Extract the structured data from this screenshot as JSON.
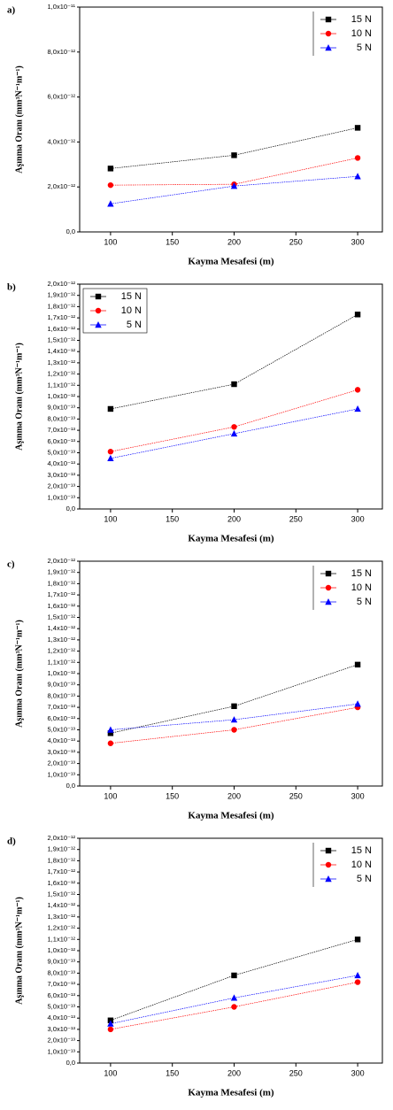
{
  "chart_data": [
    {
      "type": "line",
      "panel": "a)",
      "x_label": "Kayma Mesafesi (m)",
      "y_label": "Aşınma Oranı (mm³N⁻¹m⁻¹)",
      "x": [
        100,
        200,
        300
      ],
      "xlim": [
        75,
        320
      ],
      "xticks": [
        100,
        150,
        200,
        250,
        300
      ],
      "ylim": [
        0,
        1e-11
      ],
      "yticks": [
        {
          "value": 0,
          "label": "0,0"
        },
        {
          "value": 2e-12,
          "label": "2,0x10⁻¹²"
        },
        {
          "value": 4e-12,
          "label": "4,0x10⁻¹²"
        },
        {
          "value": 6e-12,
          "label": "6,0x10⁻¹²"
        },
        {
          "value": 8e-12,
          "label": "8,0x10⁻¹²"
        },
        {
          "value": 1e-11,
          "label": "1,0x10⁻¹¹"
        }
      ],
      "legend": "top-right",
      "series": [
        {
          "name": "15 N",
          "color": "#000000",
          "marker": "square",
          "values": [
            2.82e-12,
            3.41e-12,
            4.63e-12
          ]
        },
        {
          "name": "10 N",
          "color": "#ff0000",
          "marker": "circle",
          "values": [
            2.08e-12,
            2.12e-12,
            3.29e-12
          ]
        },
        {
          "name": "5 N",
          "color": "#0000ff",
          "marker": "triangle",
          "values": [
            1.25e-12,
            2.04e-12,
            2.47e-12
          ]
        }
      ]
    },
    {
      "type": "line",
      "panel": "b)",
      "x_label": "Kayma Mesafesi (m)",
      "y_label": "Aşınma Oranı (mm³N⁻¹m⁻¹)",
      "x": [
        100,
        200,
        300
      ],
      "xlim": [
        75,
        320
      ],
      "xticks": [
        100,
        150,
        200,
        250,
        300
      ],
      "ylim": [
        0,
        2e-12
      ],
      "yticks": [
        {
          "value": 0,
          "label": "0,0"
        },
        {
          "value": 1e-13,
          "label": "1,0x10⁻¹³"
        },
        {
          "value": 2e-13,
          "label": "2,0x10⁻¹³"
        },
        {
          "value": 3e-13,
          "label": "3,0x10⁻¹³"
        },
        {
          "value": 4e-13,
          "label": "4,0x10⁻¹³"
        },
        {
          "value": 5e-13,
          "label": "5,0x10⁻¹³"
        },
        {
          "value": 6e-13,
          "label": "6,0x10⁻¹³"
        },
        {
          "value": 7e-13,
          "label": "7,0x10⁻¹³"
        },
        {
          "value": 8e-13,
          "label": "8,0x10⁻¹³"
        },
        {
          "value": 9e-13,
          "label": "9,0x10⁻¹³"
        },
        {
          "value": 1e-12,
          "label": "1,0x10⁻¹²"
        },
        {
          "value": 1.1e-12,
          "label": "1,1x10⁻¹²"
        },
        {
          "value": 1.2e-12,
          "label": "1,2x10⁻¹²"
        },
        {
          "value": 1.3e-12,
          "label": "1,3x10⁻¹²"
        },
        {
          "value": 1.4e-12,
          "label": "1,4x10⁻¹²"
        },
        {
          "value": 1.5e-12,
          "label": "1,5x10⁻¹²"
        },
        {
          "value": 1.6e-12,
          "label": "1,6x10⁻¹²"
        },
        {
          "value": 1.7e-12,
          "label": "1,7x10⁻¹²"
        },
        {
          "value": 1.8e-12,
          "label": "1,8x10⁻¹²"
        },
        {
          "value": 1.9e-12,
          "label": "1,9x10⁻¹²"
        },
        {
          "value": 2e-12,
          "label": "2,0x10⁻¹²"
        }
      ],
      "legend": "top-left",
      "series": [
        {
          "name": "15 N",
          "color": "#000000",
          "marker": "square",
          "values": [
            8.9e-13,
            1.11e-12,
            1.73e-12
          ]
        },
        {
          "name": "10 N",
          "color": "#ff0000",
          "marker": "circle",
          "values": [
            5.1e-13,
            7.3e-13,
            1.06e-12
          ]
        },
        {
          "name": "5 N",
          "color": "#0000ff",
          "marker": "triangle",
          "values": [
            4.5e-13,
            6.7e-13,
            8.9e-13
          ]
        }
      ]
    },
    {
      "type": "line",
      "panel": "c)",
      "x_label": "Kayma Mesafesi (m)",
      "y_label": "Aşınma Oranı (mm³N⁻¹m⁻¹)",
      "x": [
        100,
        200,
        300
      ],
      "xlim": [
        75,
        320
      ],
      "xticks": [
        100,
        150,
        200,
        250,
        300
      ],
      "ylim": [
        0,
        2e-12
      ],
      "yticks": [
        {
          "value": 0,
          "label": "0,0"
        },
        {
          "value": 1e-13,
          "label": "1,0x10⁻¹³"
        },
        {
          "value": 2e-13,
          "label": "2,0x10⁻¹³"
        },
        {
          "value": 3e-13,
          "label": "3,0x10⁻¹³"
        },
        {
          "value": 4e-13,
          "label": "4,0x10⁻¹³"
        },
        {
          "value": 5e-13,
          "label": "5,0x10⁻¹³"
        },
        {
          "value": 6e-13,
          "label": "6,0x10⁻¹³"
        },
        {
          "value": 7e-13,
          "label": "7,0x10⁻¹³"
        },
        {
          "value": 8e-13,
          "label": "8,0x10⁻¹³"
        },
        {
          "value": 9e-13,
          "label": "9,0x10⁻¹³"
        },
        {
          "value": 1e-12,
          "label": "1,0x10⁻¹²"
        },
        {
          "value": 1.1e-12,
          "label": "1,1x10⁻¹²"
        },
        {
          "value": 1.2e-12,
          "label": "1,2x10⁻¹²"
        },
        {
          "value": 1.3e-12,
          "label": "1,3x10⁻¹²"
        },
        {
          "value": 1.4e-12,
          "label": "1,4x10⁻¹²"
        },
        {
          "value": 1.5e-12,
          "label": "1,5x10⁻¹²"
        },
        {
          "value": 1.6e-12,
          "label": "1,6x10⁻¹²"
        },
        {
          "value": 1.7e-12,
          "label": "1,7x10⁻¹²"
        },
        {
          "value": 1.8e-12,
          "label": "1,8x10⁻¹²"
        },
        {
          "value": 1.9e-12,
          "label": "1,9x10⁻¹²"
        },
        {
          "value": 2e-12,
          "label": "2,0x10⁻¹²"
        }
      ],
      "legend": "top-right",
      "series": [
        {
          "name": "15 N",
          "color": "#000000",
          "marker": "square",
          "values": [
            4.7e-13,
            7.1e-13,
            1.08e-12
          ]
        },
        {
          "name": "10 N",
          "color": "#ff0000",
          "marker": "circle",
          "values": [
            3.8e-13,
            5e-13,
            7e-13
          ]
        },
        {
          "name": "5 N",
          "color": "#0000ff",
          "marker": "triangle",
          "values": [
            5e-13,
            5.9e-13,
            7.3e-13
          ]
        }
      ]
    },
    {
      "type": "line",
      "panel": "d)",
      "x_label": "Kayma Mesafesi (m)",
      "y_label": "Aşınma Oranı (mm³N⁻¹m⁻¹)",
      "x": [
        100,
        200,
        300
      ],
      "xlim": [
        75,
        320
      ],
      "xticks": [
        100,
        150,
        200,
        250,
        300
      ],
      "ylim": [
        0,
        2e-12
      ],
      "yticks": [
        {
          "value": 0,
          "label": "0,0"
        },
        {
          "value": 1e-13,
          "label": "1,0x10⁻¹³"
        },
        {
          "value": 2e-13,
          "label": "2,0x10⁻¹³"
        },
        {
          "value": 3e-13,
          "label": "3,0x10⁻¹³"
        },
        {
          "value": 4e-13,
          "label": "4,0x10⁻¹³"
        },
        {
          "value": 5e-13,
          "label": "5,0x10⁻¹³"
        },
        {
          "value": 6e-13,
          "label": "6,0x10⁻¹³"
        },
        {
          "value": 7e-13,
          "label": "7,0x10⁻¹³"
        },
        {
          "value": 8e-13,
          "label": "8,0x10⁻¹³"
        },
        {
          "value": 9e-13,
          "label": "9,0x10⁻¹³"
        },
        {
          "value": 1e-12,
          "label": "1,0x10⁻¹²"
        },
        {
          "value": 1.1e-12,
          "label": "1,1x10⁻¹²"
        },
        {
          "value": 1.2e-12,
          "label": "1,2x10⁻¹²"
        },
        {
          "value": 1.3e-12,
          "label": "1,3x10⁻¹²"
        },
        {
          "value": 1.4e-12,
          "label": "1,4x10⁻¹²"
        },
        {
          "value": 1.5e-12,
          "label": "1,5x10⁻¹²"
        },
        {
          "value": 1.6e-12,
          "label": "1,6x10⁻¹²"
        },
        {
          "value": 1.7e-12,
          "label": "1,7x10⁻¹²"
        },
        {
          "value": 1.8e-12,
          "label": "1,8x10⁻¹²"
        },
        {
          "value": 1.9e-12,
          "label": "1,9x10⁻¹²"
        },
        {
          "value": 2e-12,
          "label": "2,0x10⁻¹²"
        }
      ],
      "legend": "top-right",
      "series": [
        {
          "name": "15 N",
          "color": "#000000",
          "marker": "square",
          "values": [
            3.8e-13,
            7.8e-13,
            1.1e-12
          ]
        },
        {
          "name": "10 N",
          "color": "#ff0000",
          "marker": "circle",
          "values": [
            3e-13,
            5e-13,
            7.2e-13
          ]
        },
        {
          "name": "5 N",
          "color": "#0000ff",
          "marker": "triangle",
          "values": [
            3.5e-13,
            5.8e-13,
            7.8e-13
          ]
        }
      ]
    }
  ]
}
